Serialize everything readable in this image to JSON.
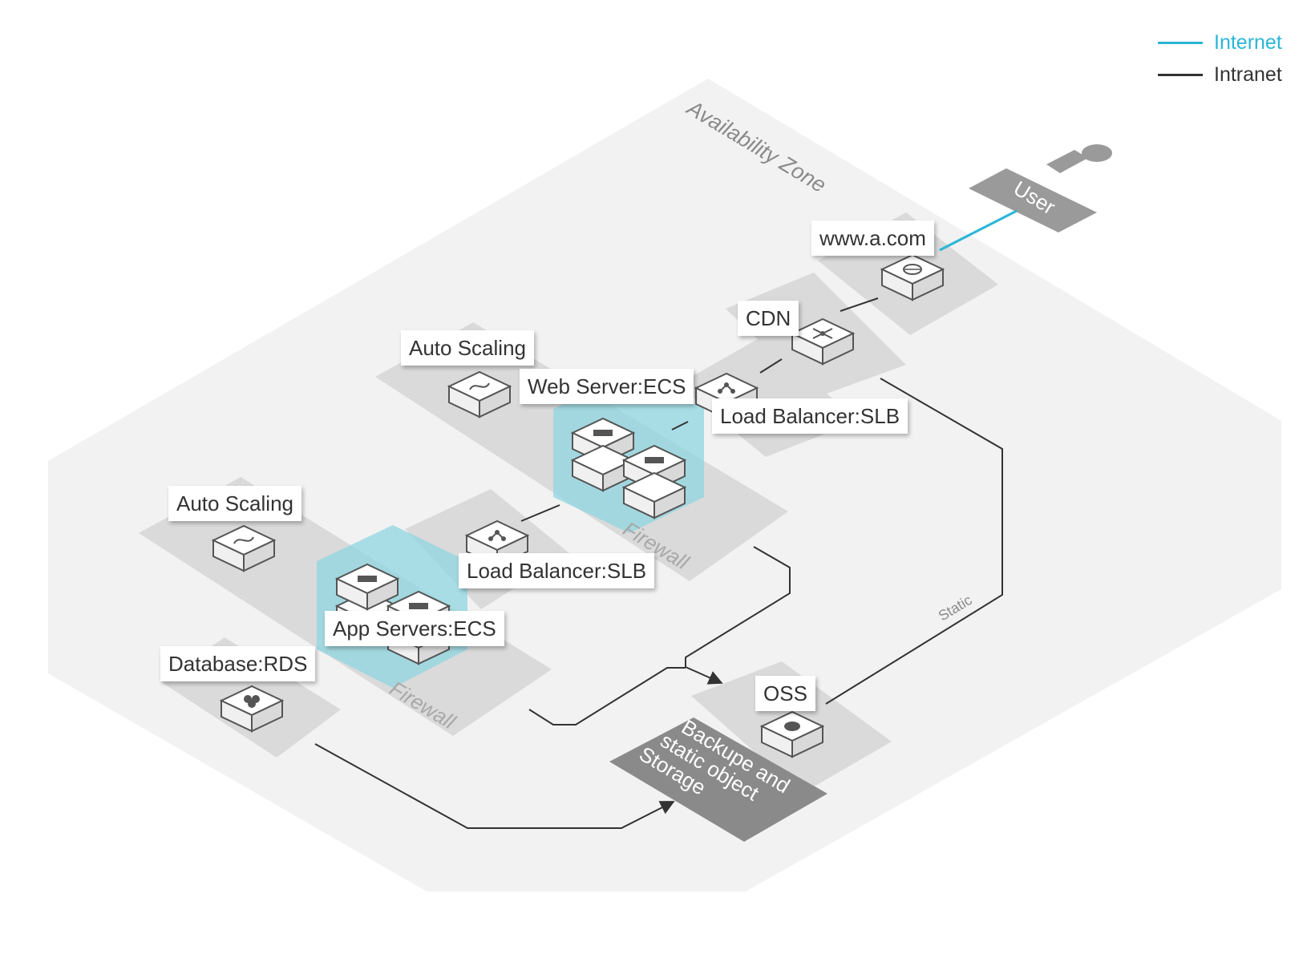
{
  "legend": {
    "internet": {
      "label": "Internet",
      "color": "#2bb6d6"
    },
    "intranet": {
      "label": "Intranet",
      "color": "#333333"
    }
  },
  "zone_label": "Availability Zone",
  "user_label": "User",
  "nodes": {
    "domain": {
      "label": "www.a.com",
      "icon": "dns-icon"
    },
    "cdn": {
      "label": "CDN",
      "icon": "cdn-network-icon"
    },
    "slb_web": {
      "label": "Load Balancer:SLB",
      "icon": "load-balancer-icon"
    },
    "auto_scaling_web": {
      "label": "Auto Scaling",
      "icon": "auto-scaling-icon"
    },
    "web_server": {
      "label": "Web Server:ECS",
      "icon": "server-icon"
    },
    "auto_scaling_app": {
      "label": "Auto Scaling",
      "icon": "auto-scaling-icon"
    },
    "slb_app": {
      "label": "Load Balancer:SLB",
      "icon": "load-balancer-icon"
    },
    "app_servers": {
      "label": "App Servers:ECS",
      "icon": "server-icon"
    },
    "database": {
      "label": "Database:RDS",
      "icon": "database-icon"
    },
    "oss": {
      "label": "OSS",
      "icon": "storage-icon"
    }
  },
  "firewall_label": "Firewall",
  "static_label": "Static",
  "storage_label": [
    "Backupe and",
    "static object",
    "Storage"
  ],
  "colors": {
    "zone": "#f2f2f2",
    "platform": "#dadada",
    "highlight": "#8fd6e0",
    "dark_panel": "#8a8a8a",
    "user_shape": "#9a9a9a"
  }
}
